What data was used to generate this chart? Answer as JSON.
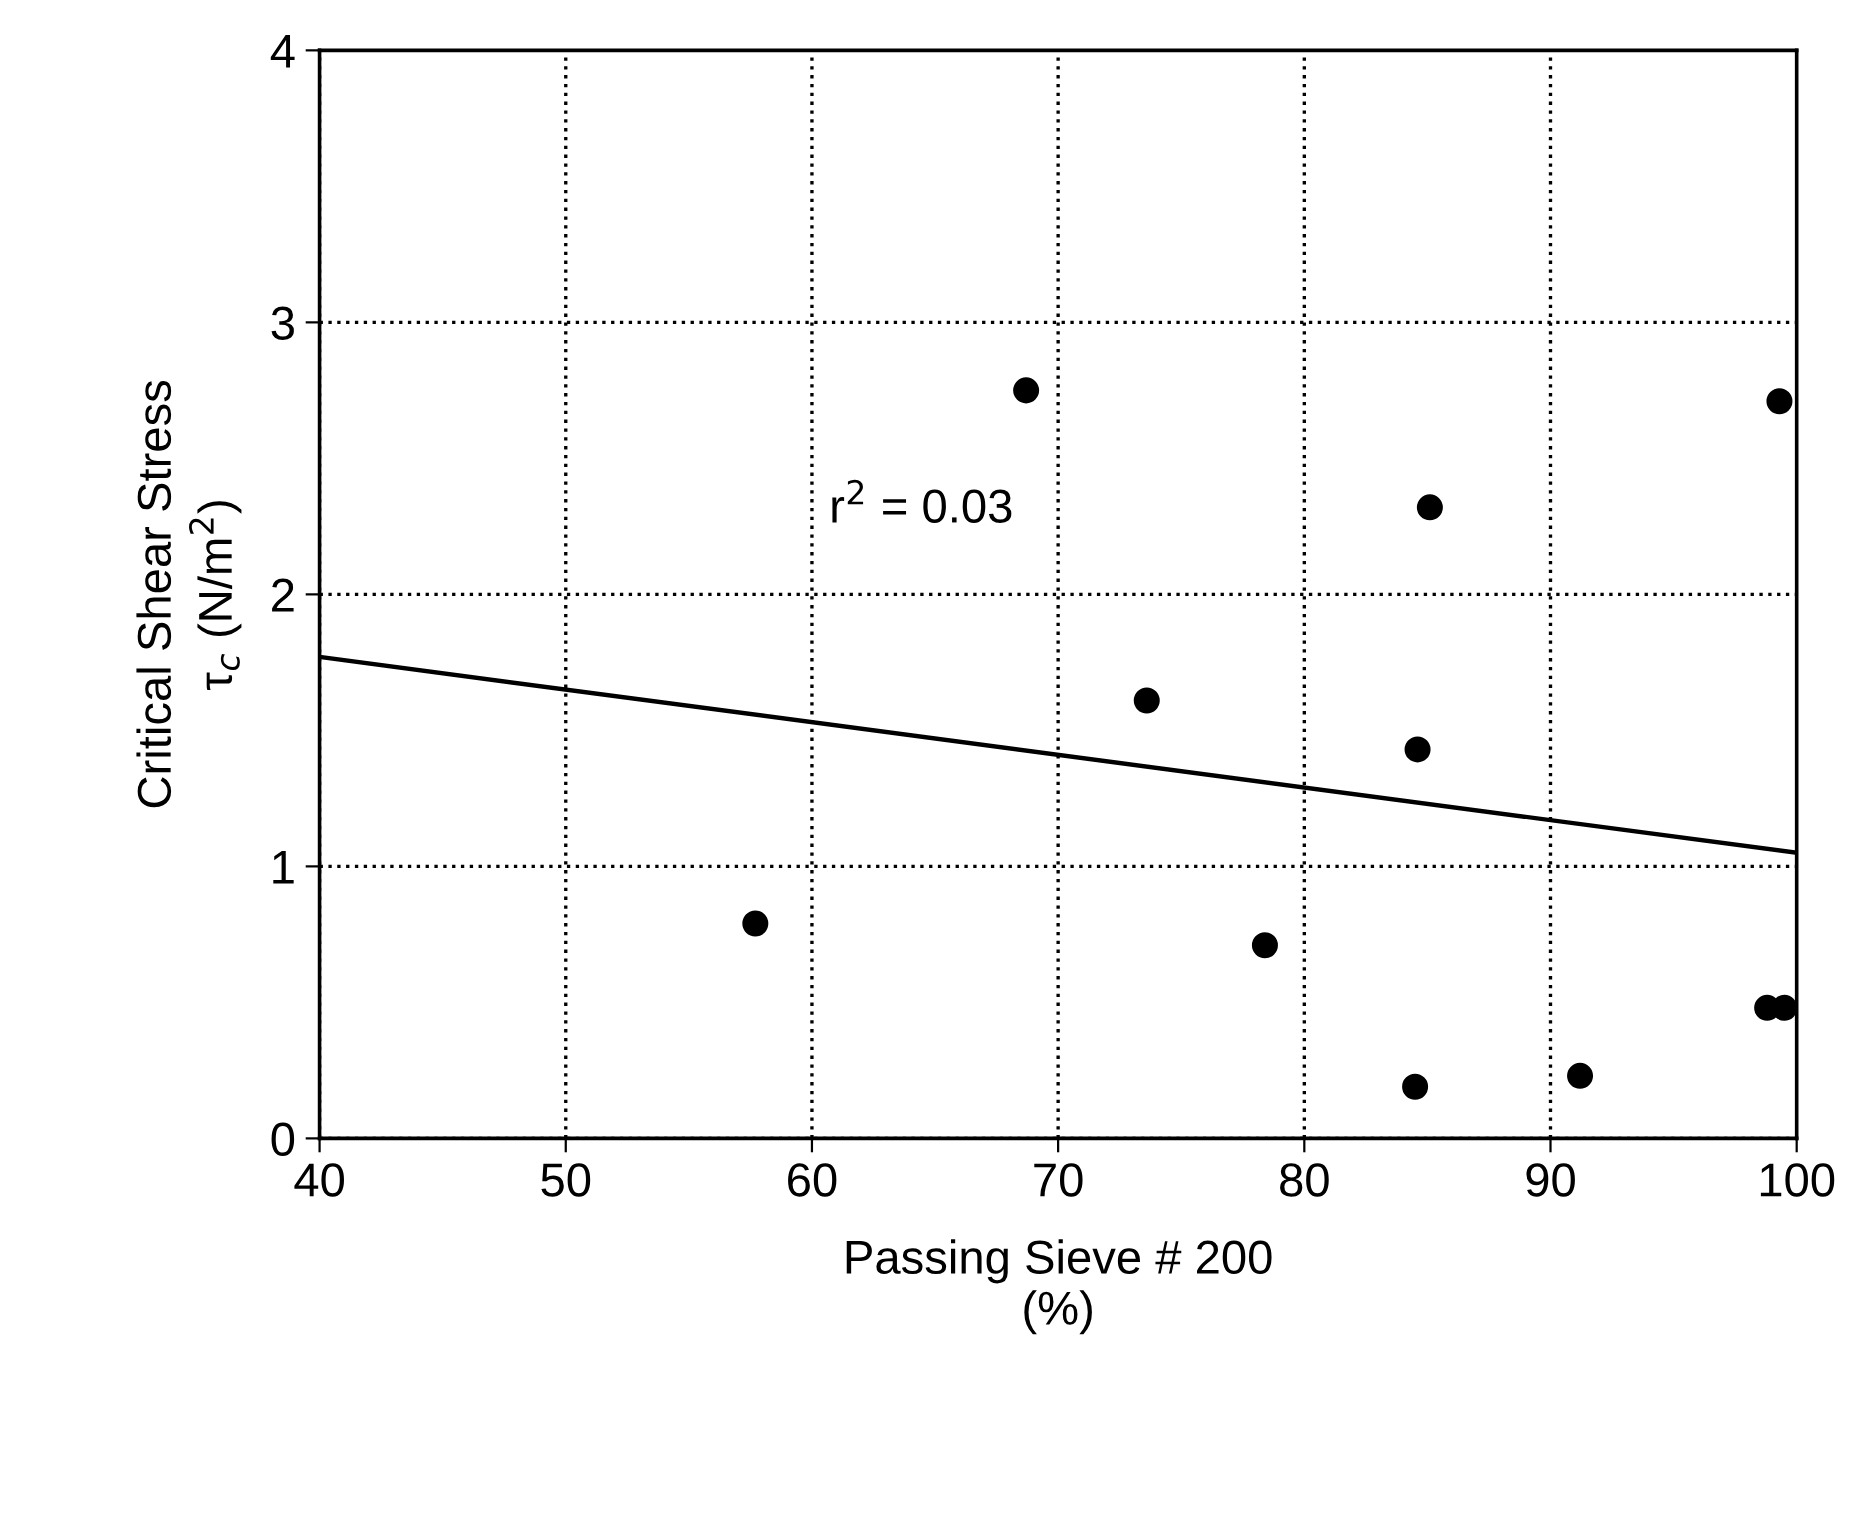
{
  "chart_data": {
    "type": "scatter",
    "xlabel": "Passing Sieve # 200\n(%)",
    "ylabel": "Critical Shear Stress\nτ$_{c}$ (N/m$^{2}$)",
    "xlim": [
      40,
      100
    ],
    "xticks": [
      40,
      50,
      60,
      70,
      80,
      90,
      100
    ],
    "ylim": [
      0,
      4
    ],
    "yticks": [
      0,
      1,
      2,
      3,
      4
    ],
    "grid": true,
    "series": [
      {
        "marker": "circle",
        "color": "#000000",
        "x": [
          57.7,
          68.7,
          73.6,
          78.4,
          85.1,
          84.6,
          84.5,
          91.2,
          99.3,
          98.8,
          99.5
        ],
        "values": [
          0.79,
          2.75,
          1.61,
          0.71,
          2.32,
          1.43,
          0.19,
          0.23,
          2.71,
          0.48,
          0.48
        ]
      },
      {
        "type": "line",
        "color": "#000000",
        "line_style": "solid",
        "x": [
          40,
          100
        ],
        "values": [
          1.77,
          1.05
        ]
      }
    ],
    "annotations": [
      "r$^{2}$ = 0.03"
    ]
  }
}
